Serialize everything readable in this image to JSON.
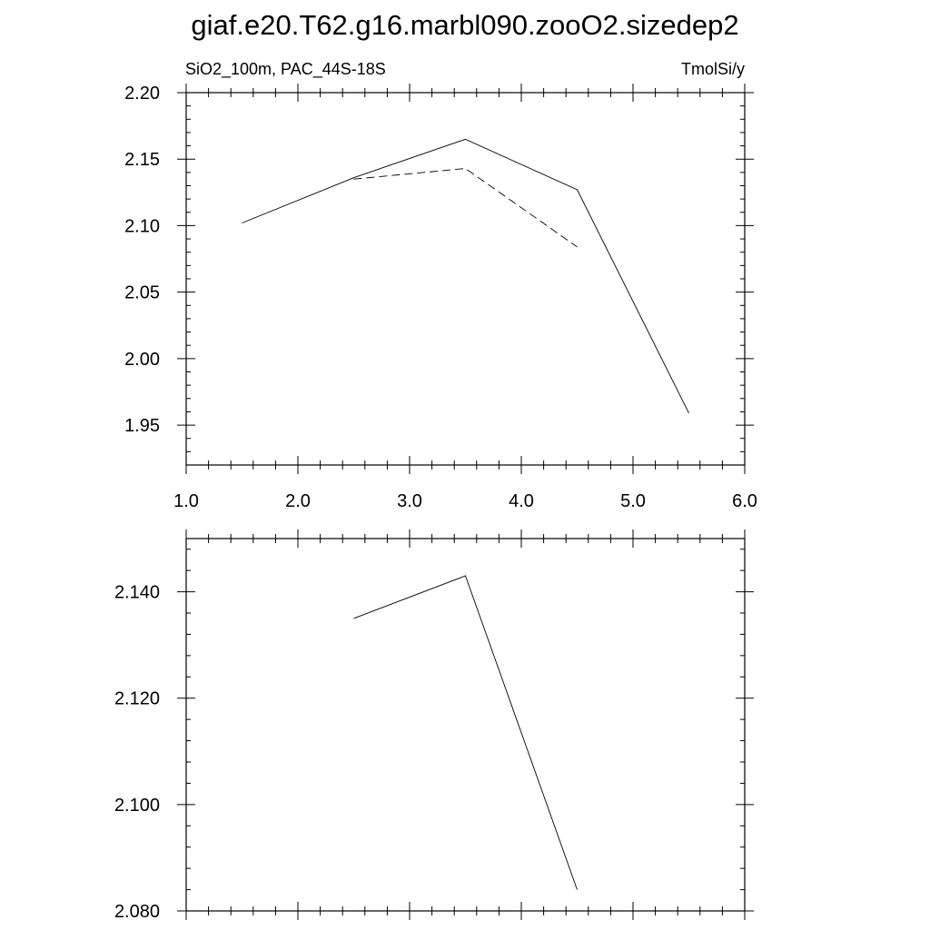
{
  "title": "giaf.e20.T62.g16.marbl090.zooO2.sizedep2",
  "chart_data": [
    {
      "type": "line",
      "left_label": "SiO2_100m, PAC_44S-18S",
      "right_label": "TmolSi/y",
      "xlim": [
        1.0,
        6.0
      ],
      "ylim": [
        1.92,
        2.2
      ],
      "x_ticks": [
        1.0,
        2.0,
        3.0,
        4.0,
        5.0,
        6.0
      ],
      "x_tick_labels": [
        "1.0",
        "2.0",
        "3.0",
        "4.0",
        "5.0",
        "6.0"
      ],
      "y_ticks": [
        1.95,
        2.0,
        2.05,
        2.1,
        2.15,
        2.2
      ],
      "y_tick_labels": [
        "1.95",
        "2.00",
        "2.05",
        "2.10",
        "2.15",
        "2.20"
      ],
      "grid": false,
      "series": [
        {
          "style": "solid",
          "x": [
            1.5,
            2.5,
            3.5,
            4.5,
            5.5
          ],
          "y": [
            2.102,
            2.136,
            2.165,
            2.127,
            1.959
          ]
        },
        {
          "style": "dashed",
          "x": [
            2.5,
            3.5,
            4.5
          ],
          "y": [
            2.135,
            2.143,
            2.084
          ]
        }
      ]
    },
    {
      "type": "line",
      "xlim": [
        1.0,
        6.0
      ],
      "ylim": [
        2.08,
        2.15
      ],
      "y_ticks": [
        2.08,
        2.1,
        2.12,
        2.14
      ],
      "y_tick_labels": [
        "2.080",
        "2.100",
        "2.120",
        "2.140"
      ],
      "grid": false,
      "series": [
        {
          "style": "solid",
          "x": [
            2.5,
            3.5,
            4.5
          ],
          "y": [
            2.135,
            2.143,
            2.084
          ]
        }
      ]
    }
  ]
}
